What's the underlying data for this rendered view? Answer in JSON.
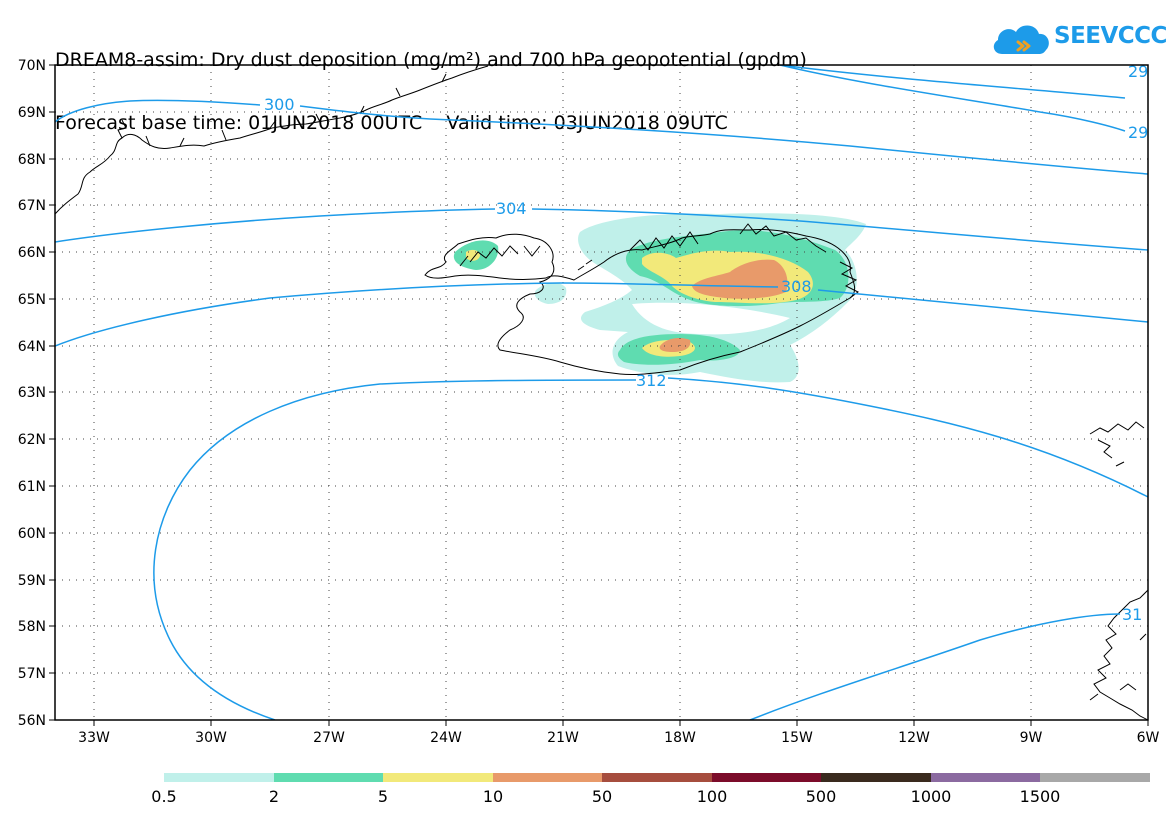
{
  "title": {
    "line1": "DREAM8-assim: Dry dust deposition (mg/m²) and 700 hPa geopotential (gpdm)",
    "line2": "Forecast base time: 01JUN2018 00UTC    Valid time: 03JUN2018 09UTC"
  },
  "logo": {
    "text": "SEEVCCC",
    "icon": "cloud-icon",
    "color": "#1d9be9"
  },
  "axes": {
    "lat_labels": [
      "70N",
      "69N",
      "68N",
      "67N",
      "66N",
      "65N",
      "64N",
      "63N",
      "62N",
      "61N",
      "60N",
      "59N",
      "58N",
      "57N",
      "56N"
    ],
    "lon_labels": [
      "33W",
      "30W",
      "27W",
      "24W",
      "21W",
      "18W",
      "15W",
      "12W",
      "9W",
      "6W"
    ],
    "grid": "dotted"
  },
  "contours": {
    "color": "#1d9be9",
    "labels": [
      "300",
      "304",
      "308",
      "312",
      "29",
      "29",
      "31"
    ]
  },
  "legend": {
    "labels": [
      "0.5",
      "2",
      "5",
      "10",
      "50",
      "100",
      "500",
      "1000",
      "1500"
    ],
    "colors": [
      "#c0f0ea",
      "#5fdcb0",
      "#f2e97a",
      "#e89a6a",
      "#a64d3e",
      "#7c0c2a",
      "#3a2a1e",
      "#8b6aa0",
      "#a8a8a8"
    ]
  }
}
